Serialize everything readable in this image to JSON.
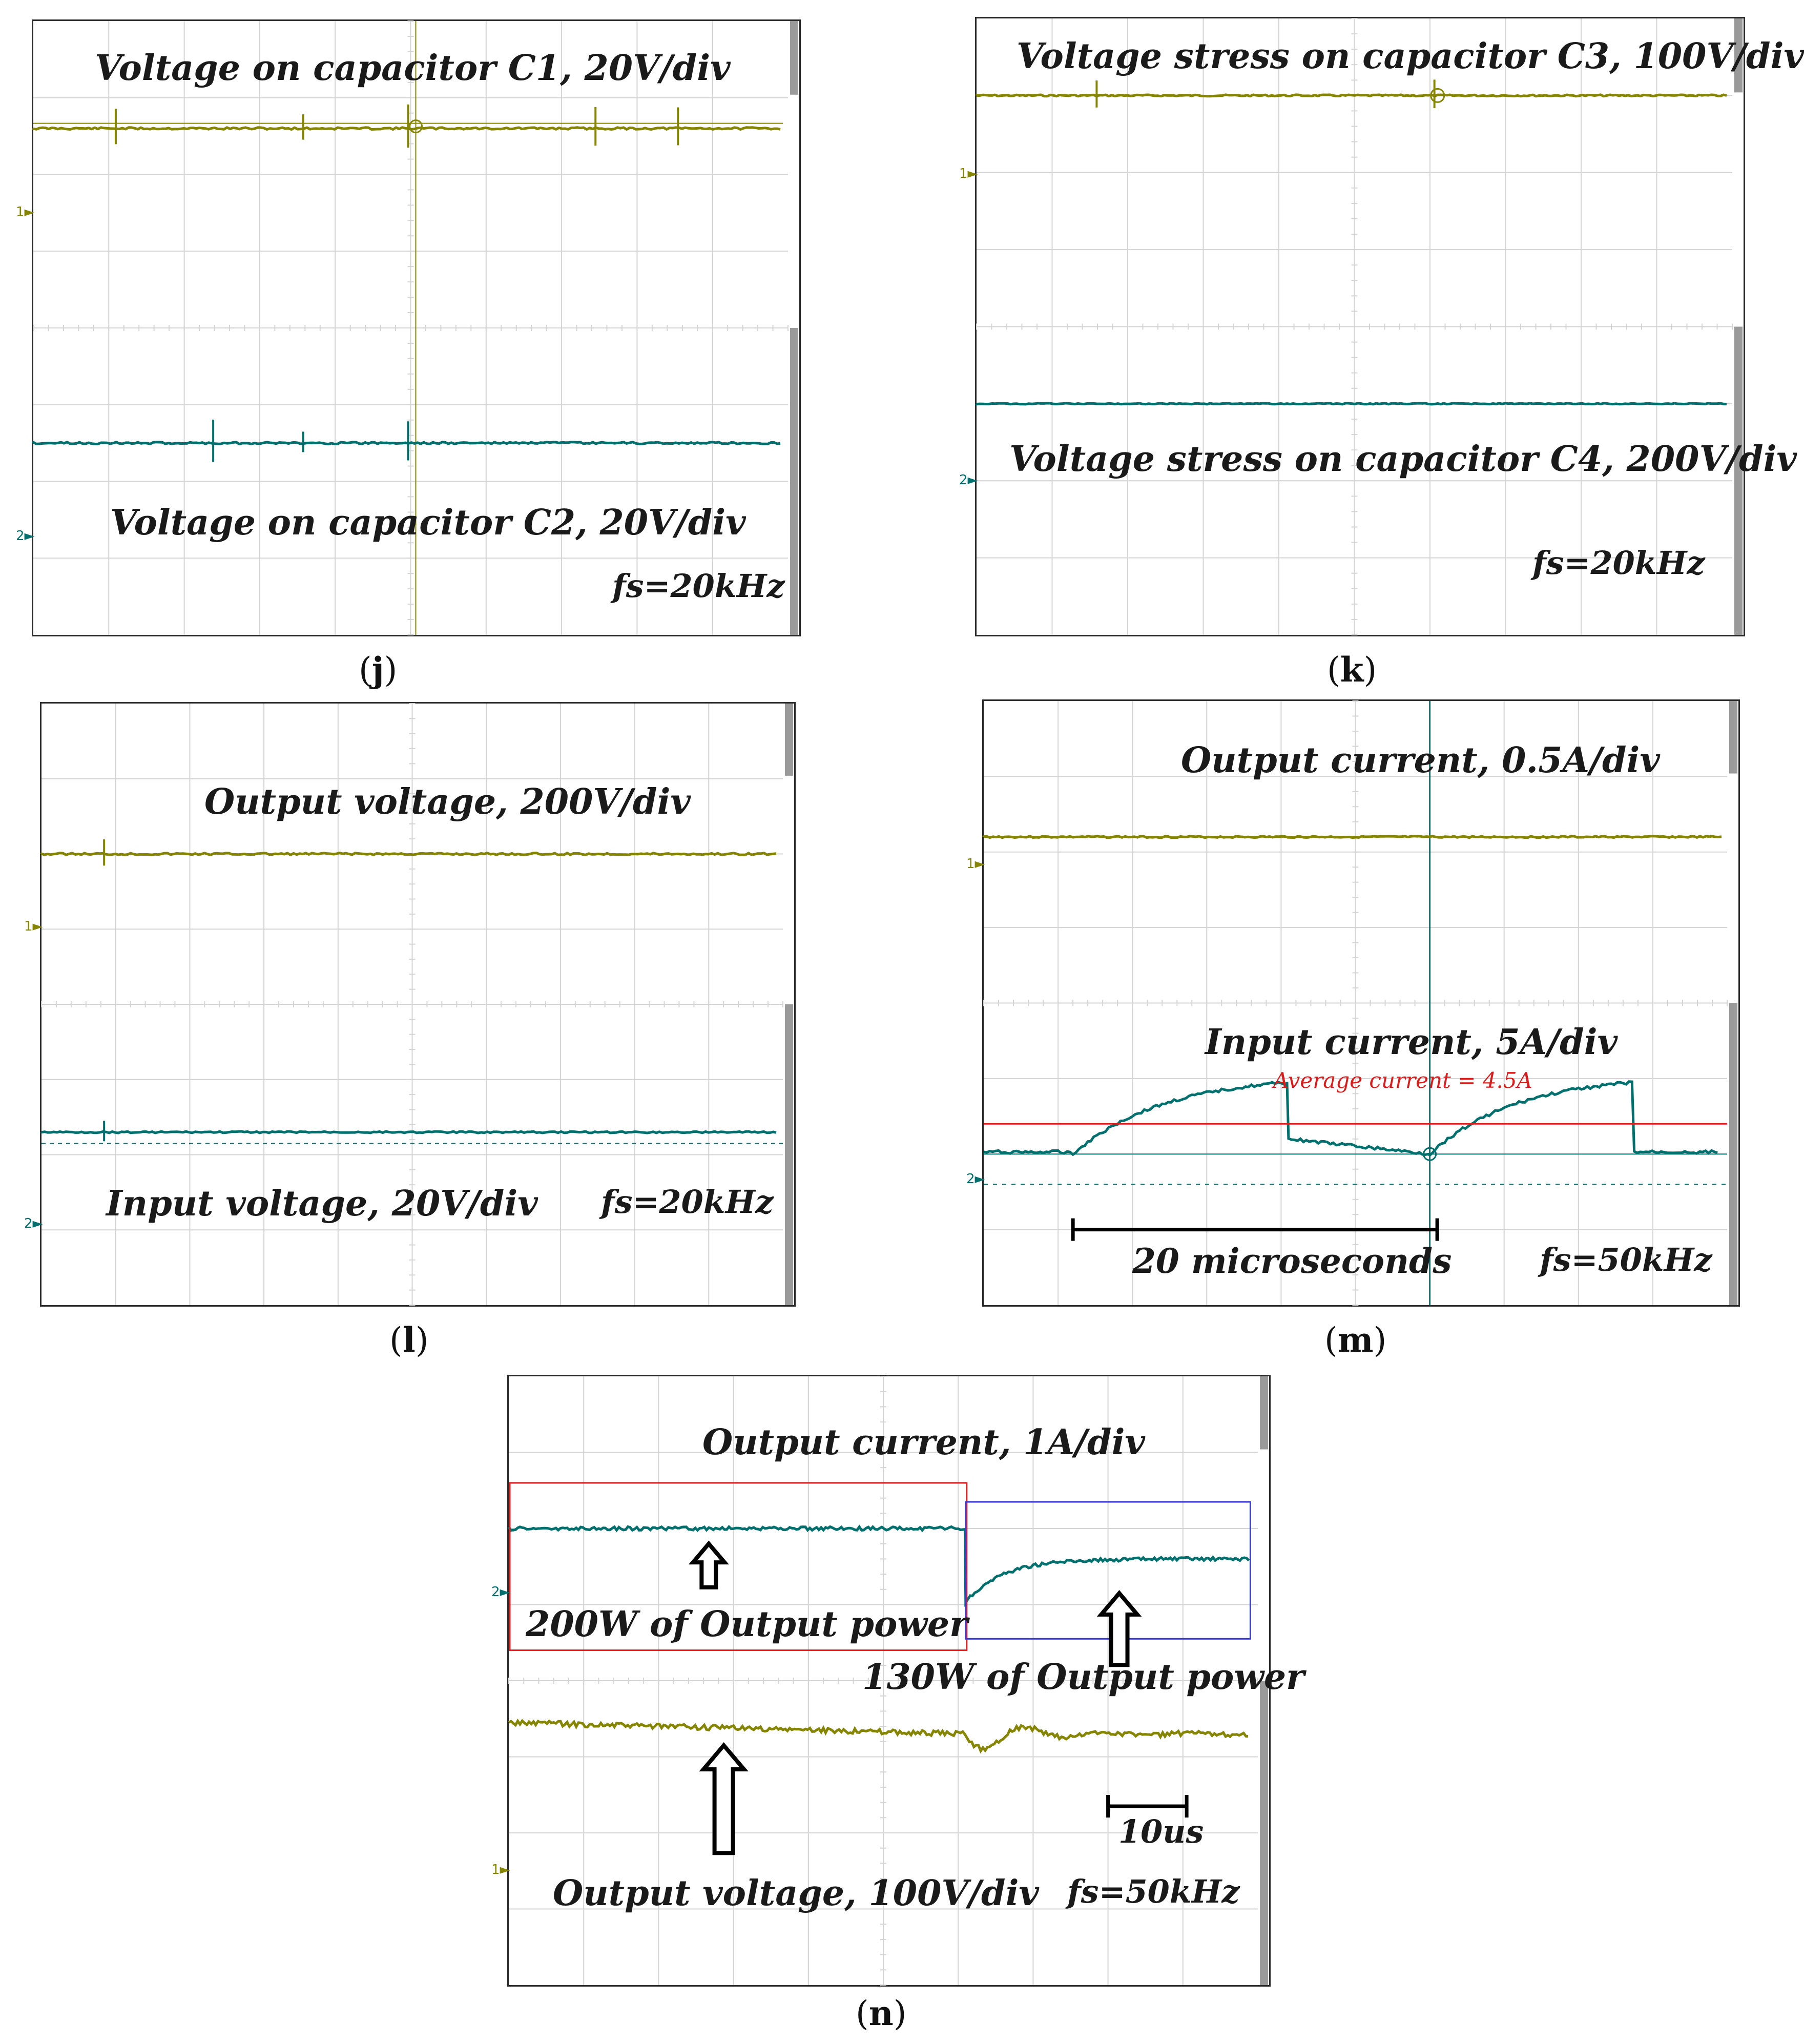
{
  "colors": {
    "ch1": "#858500",
    "ch2": "#00706e",
    "grid": "#d4d4d4",
    "average": "#e41a1c",
    "box_200w": "#e41a1c",
    "box_130w": "#3a3ad8",
    "scrollbar": "#9a9a9a"
  },
  "panels": {
    "j": {
      "caption_open": "(",
      "caption_letter": "j",
      "caption_close": ")",
      "label_top": "Voltage on capacitor C1, 20V/div",
      "label_bottom": "Voltage on capacitor C2, 20V/div",
      "fs": "fs=20kHz"
    },
    "k": {
      "caption_open": "(",
      "caption_letter": "k",
      "caption_close": ")",
      "label_top": "Voltage stress on capacitor C3, 100V/div",
      "label_bottom": "Voltage stress on capacitor C4, 200V/div",
      "fs": "fs=20kHz"
    },
    "l": {
      "caption_open": "(",
      "caption_letter": "l",
      "caption_close": ")",
      "label_top": "Output voltage, 200V/div",
      "label_bottom": "Input voltage, 20V/div",
      "fs": "fs=20kHz"
    },
    "m": {
      "caption_open": "(",
      "caption_letter": "m",
      "caption_close": ")",
      "label_top": "Output current, 0.5A/div",
      "label_mid": "Input current, 5A/div",
      "avg": "Average current = 4.5A",
      "scale": "20 microseconds",
      "fs": "fs=50kHz"
    },
    "n": {
      "caption_open": "(",
      "caption_letter": "n",
      "caption_close": ")",
      "label_top": "Output current, 1A/div",
      "label_200w": "200W of Output power",
      "label_130w": "130W of Output power",
      "label_bottom": "Output voltage, 100V/div",
      "scale": "10us",
      "fs": "fs=50kHz"
    }
  },
  "channel_markers": {
    "ch1": "1",
    "ch2": "2"
  },
  "chart_data": [
    {
      "panel": "j",
      "type": "line",
      "series": [
        {
          "name": "Voltage on capacitor C1, 20V/div",
          "channel": "1",
          "level_div": 6.6,
          "shape": "flat-with-spikes"
        },
        {
          "name": "Voltage on capacitor C2, 20V/div",
          "channel": "2",
          "level_div": 2.5,
          "shape": "flat-with-spikes"
        }
      ],
      "grid": {
        "x_div": 10,
        "y_div": 8
      },
      "fs": "fs=20kHz"
    },
    {
      "panel": "k",
      "type": "line",
      "series": [
        {
          "name": "Voltage stress on capacitor C3, 100V/div",
          "channel": "1",
          "level_div": 7.0,
          "shape": "flat"
        },
        {
          "name": "Voltage stress on capacitor C4, 200V/div",
          "channel": "2",
          "level_div": 3.0,
          "shape": "flat"
        }
      ],
      "grid": {
        "x_div": 10,
        "y_div": 8
      },
      "fs": "fs=20kHz"
    },
    {
      "panel": "l",
      "type": "line",
      "series": [
        {
          "name": "Output voltage, 200V/div",
          "channel": "1",
          "level_div": 6.0,
          "shape": "flat"
        },
        {
          "name": "Input voltage, 20V/div",
          "channel": "2",
          "level_div": 2.3,
          "shape": "flat"
        }
      ],
      "grid": {
        "x_div": 10,
        "y_div": 8
      },
      "fs": "fs=20kHz"
    },
    {
      "panel": "m",
      "type": "line",
      "series": [
        {
          "name": "Output current, 0.5A/div",
          "channel": "1",
          "level_div": 6.2,
          "shape": "flat"
        },
        {
          "name": "Input current, 5A/div",
          "channel": "2",
          "shape": "ramp-sawtooth",
          "min_div": 2.0,
          "max_div": 2.95,
          "period_us": 20,
          "periods_shown": 2.2
        },
        {
          "name": "Average current = 4.5A",
          "value": 4.5,
          "unit": "A",
          "level_div": 2.4
        }
      ],
      "grid": {
        "x_div": 10,
        "y_div": 8
      },
      "scale_bar": "20 microseconds",
      "fs": "fs=50kHz"
    },
    {
      "panel": "n",
      "type": "line",
      "series": [
        {
          "name": "Output current, 1A/div",
          "channel": "2",
          "segments": [
            {
              "load": "200W of Output power",
              "level_div": 6.0
            },
            {
              "load": "130W of Output power",
              "level_div": 5.6
            }
          ]
        },
        {
          "name": "Output voltage, 100V/div",
          "channel": "1",
          "segments": [
            {
              "load": "200W of Output power",
              "level_div": 3.45
            },
            {
              "load": "130W of Output power",
              "level_div": 3.3
            }
          ]
        }
      ],
      "grid": {
        "x_div": 10,
        "y_div": 8
      },
      "scale_bar": "10us",
      "fs": "fs=50kHz"
    }
  ]
}
